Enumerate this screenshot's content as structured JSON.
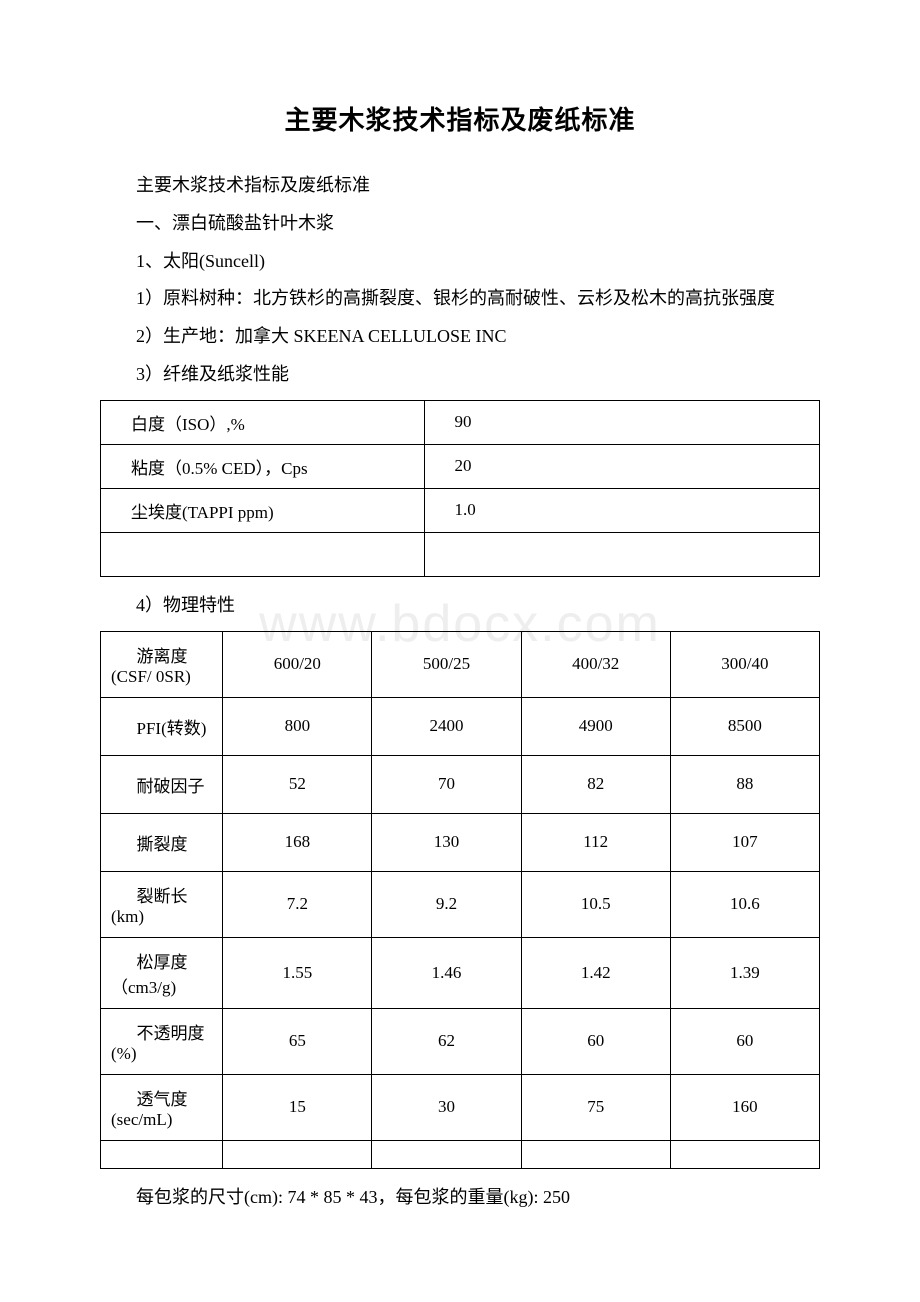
{
  "watermark": "www.bdocx.com",
  "title": "主要木浆技术指标及废纸标准",
  "lines": {
    "subtitle": "主要木浆技术指标及废纸标准",
    "s1": "一、漂白硫酸盐针叶木浆",
    "s1_1": "1、太阳(Suncell)",
    "s1_1_1": "1）原料树种：北方铁杉的高撕裂度、银杉的高耐破性、云杉及松木的高抗张强度",
    "s1_1_2": "2）生产地：加拿大 SKEENA CELLULOSE INC",
    "s1_1_3": "3）纤维及纸浆性能",
    "s1_1_4": "4）物理特性",
    "footer": "每包浆的尺寸(cm): 74 * 85 * 43，每包浆的重量(kg): 250"
  },
  "table1": {
    "rows": [
      [
        "白度（ISO）,%",
        "90"
      ],
      [
        "粘度（0.5% CED），Cps",
        "20"
      ],
      [
        "尘埃度(TAPPI ppm)",
        "1.0"
      ],
      [
        "",
        ""
      ]
    ]
  },
  "table2": {
    "rows": [
      {
        "label": "游离度(CSF/ 0SR)",
        "vals": [
          "600/20",
          "500/25",
          "400/32",
          "300/40"
        ]
      },
      {
        "label": "PFI(转数)",
        "vals": [
          "800",
          "2400",
          "4900",
          "8500"
        ]
      },
      {
        "label": "耐破因子",
        "vals": [
          "52",
          "70",
          "82",
          "88"
        ]
      },
      {
        "label": "撕裂度",
        "vals": [
          "168",
          "130",
          "112",
          "107"
        ]
      },
      {
        "label": "裂断长(km)",
        "vals": [
          "7.2",
          "9.2",
          "10.5",
          "10.6"
        ]
      },
      {
        "label": "松厚度（cm3/g)",
        "vals": [
          "1.55",
          "1.46",
          "1.42",
          "1.39"
        ]
      },
      {
        "label": "不透明度(%)",
        "vals": [
          "65",
          "62",
          "60",
          "60"
        ]
      },
      {
        "label": "透气度(sec/mL)",
        "vals": [
          "15",
          "30",
          "75",
          "160"
        ]
      },
      {
        "label": "",
        "vals": [
          "",
          "",
          "",
          ""
        ]
      }
    ]
  },
  "colors": {
    "text": "#000000",
    "background": "#ffffff",
    "border": "#000000",
    "watermark": "#eeeeee"
  }
}
